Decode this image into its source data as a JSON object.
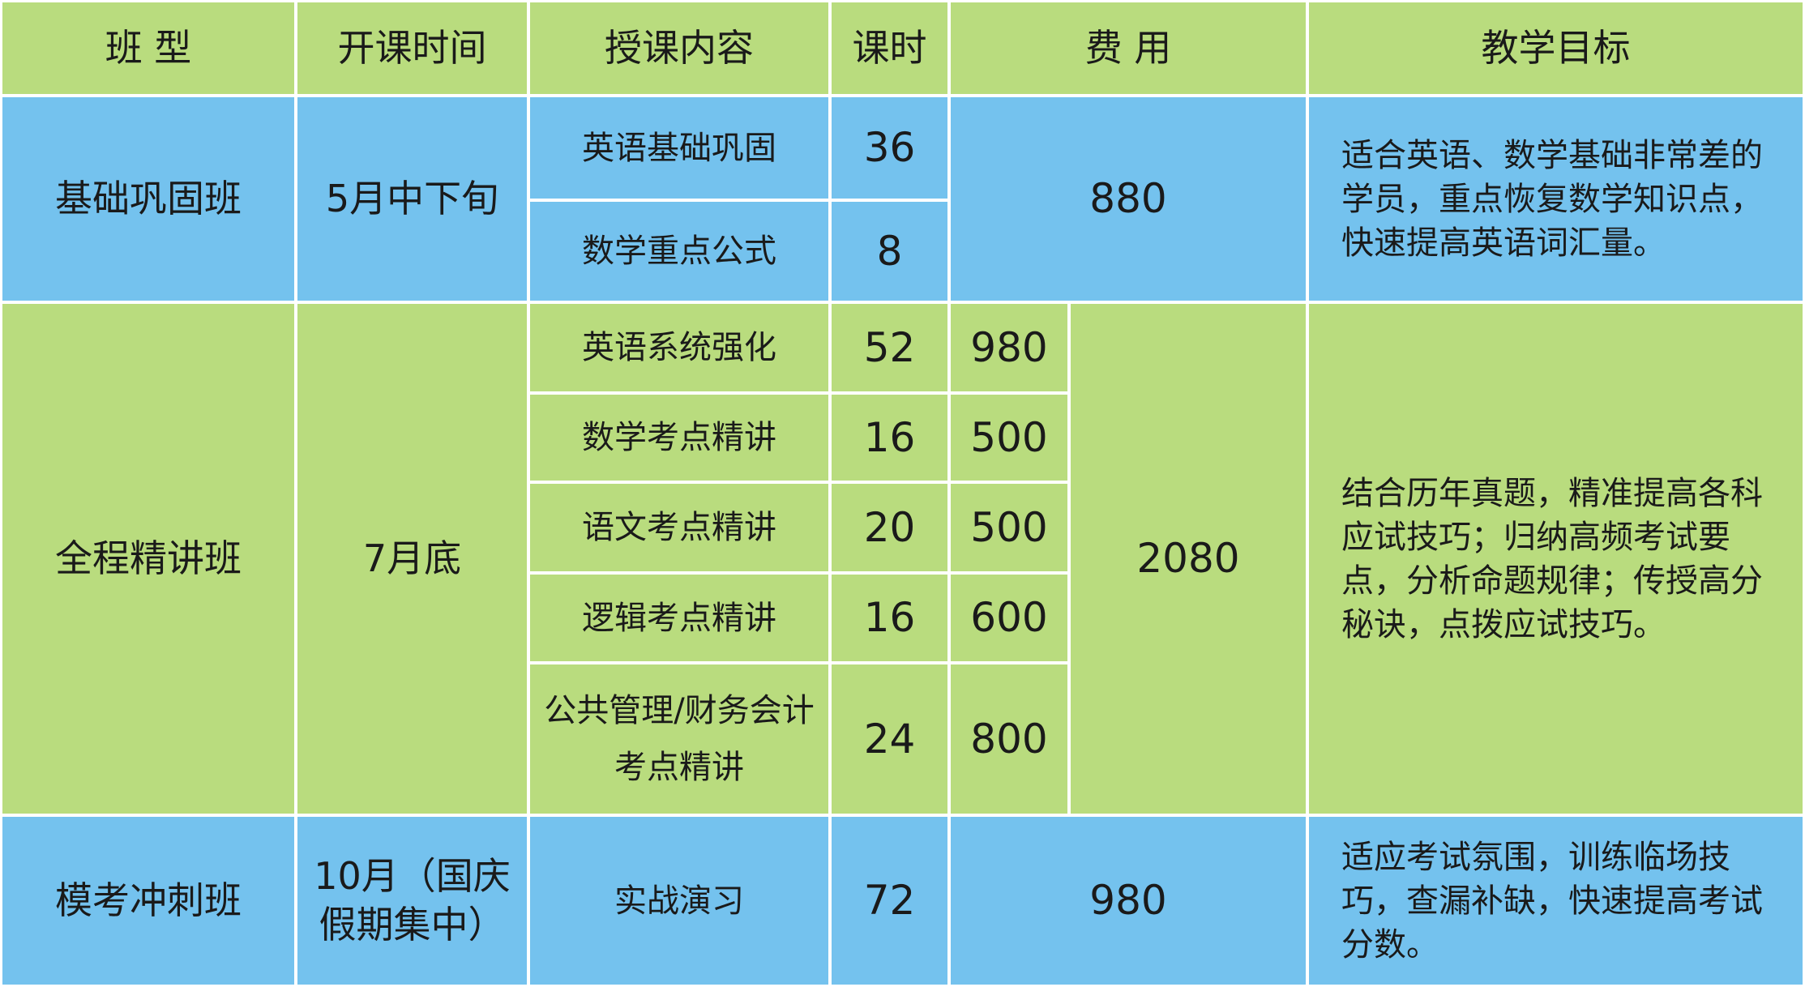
{
  "colors": {
    "header": "#b9dc7e",
    "blue_row": "#74c2ee",
    "green_row": "#b9dc7e"
  },
  "headers": [
    "班 型",
    "开课时间",
    "授课内容",
    "课时",
    "费 用",
    "教学目标"
  ],
  "rows": [
    {
      "class": "基础巩固班",
      "start": "5月中下旬",
      "courses": [
        {
          "name": "英语基础巩固",
          "hours": "36"
        },
        {
          "name": "数学重点公式",
          "hours": "8"
        }
      ],
      "total_fee": "880",
      "goal": "适合英语、数学基础非常差的学员，重点恢复数学知识点，快速提高英语词汇量。"
    },
    {
      "class": "全程精讲班",
      "start": "7月底",
      "courses": [
        {
          "name": "英语系统强化",
          "hours": "52",
          "fee": "980"
        },
        {
          "name": "数学考点精讲",
          "hours": "16",
          "fee": "500"
        },
        {
          "name": "语文考点精讲",
          "hours": "20",
          "fee": "500"
        },
        {
          "name": "逻辑考点精讲",
          "hours": "16",
          "fee": "600"
        },
        {
          "name": "公共管理/财务会计考点精讲",
          "hours": "24",
          "fee": "800"
        }
      ],
      "total_fee": "2080",
      "goal": "结合历年真题，精准提高各科应试技巧；归纳高频考试要点，分析命题规律；传授高分秘诀，点拨应试技巧。"
    },
    {
      "class": "模考冲刺班",
      "start": "10月（国庆假期集中）",
      "courses": [
        {
          "name": "实战演习",
          "hours": "72"
        }
      ],
      "total_fee": "980",
      "goal": "适应考试氛围，训练临场技巧，查漏补缺，快速提高考试分数。"
    }
  ]
}
